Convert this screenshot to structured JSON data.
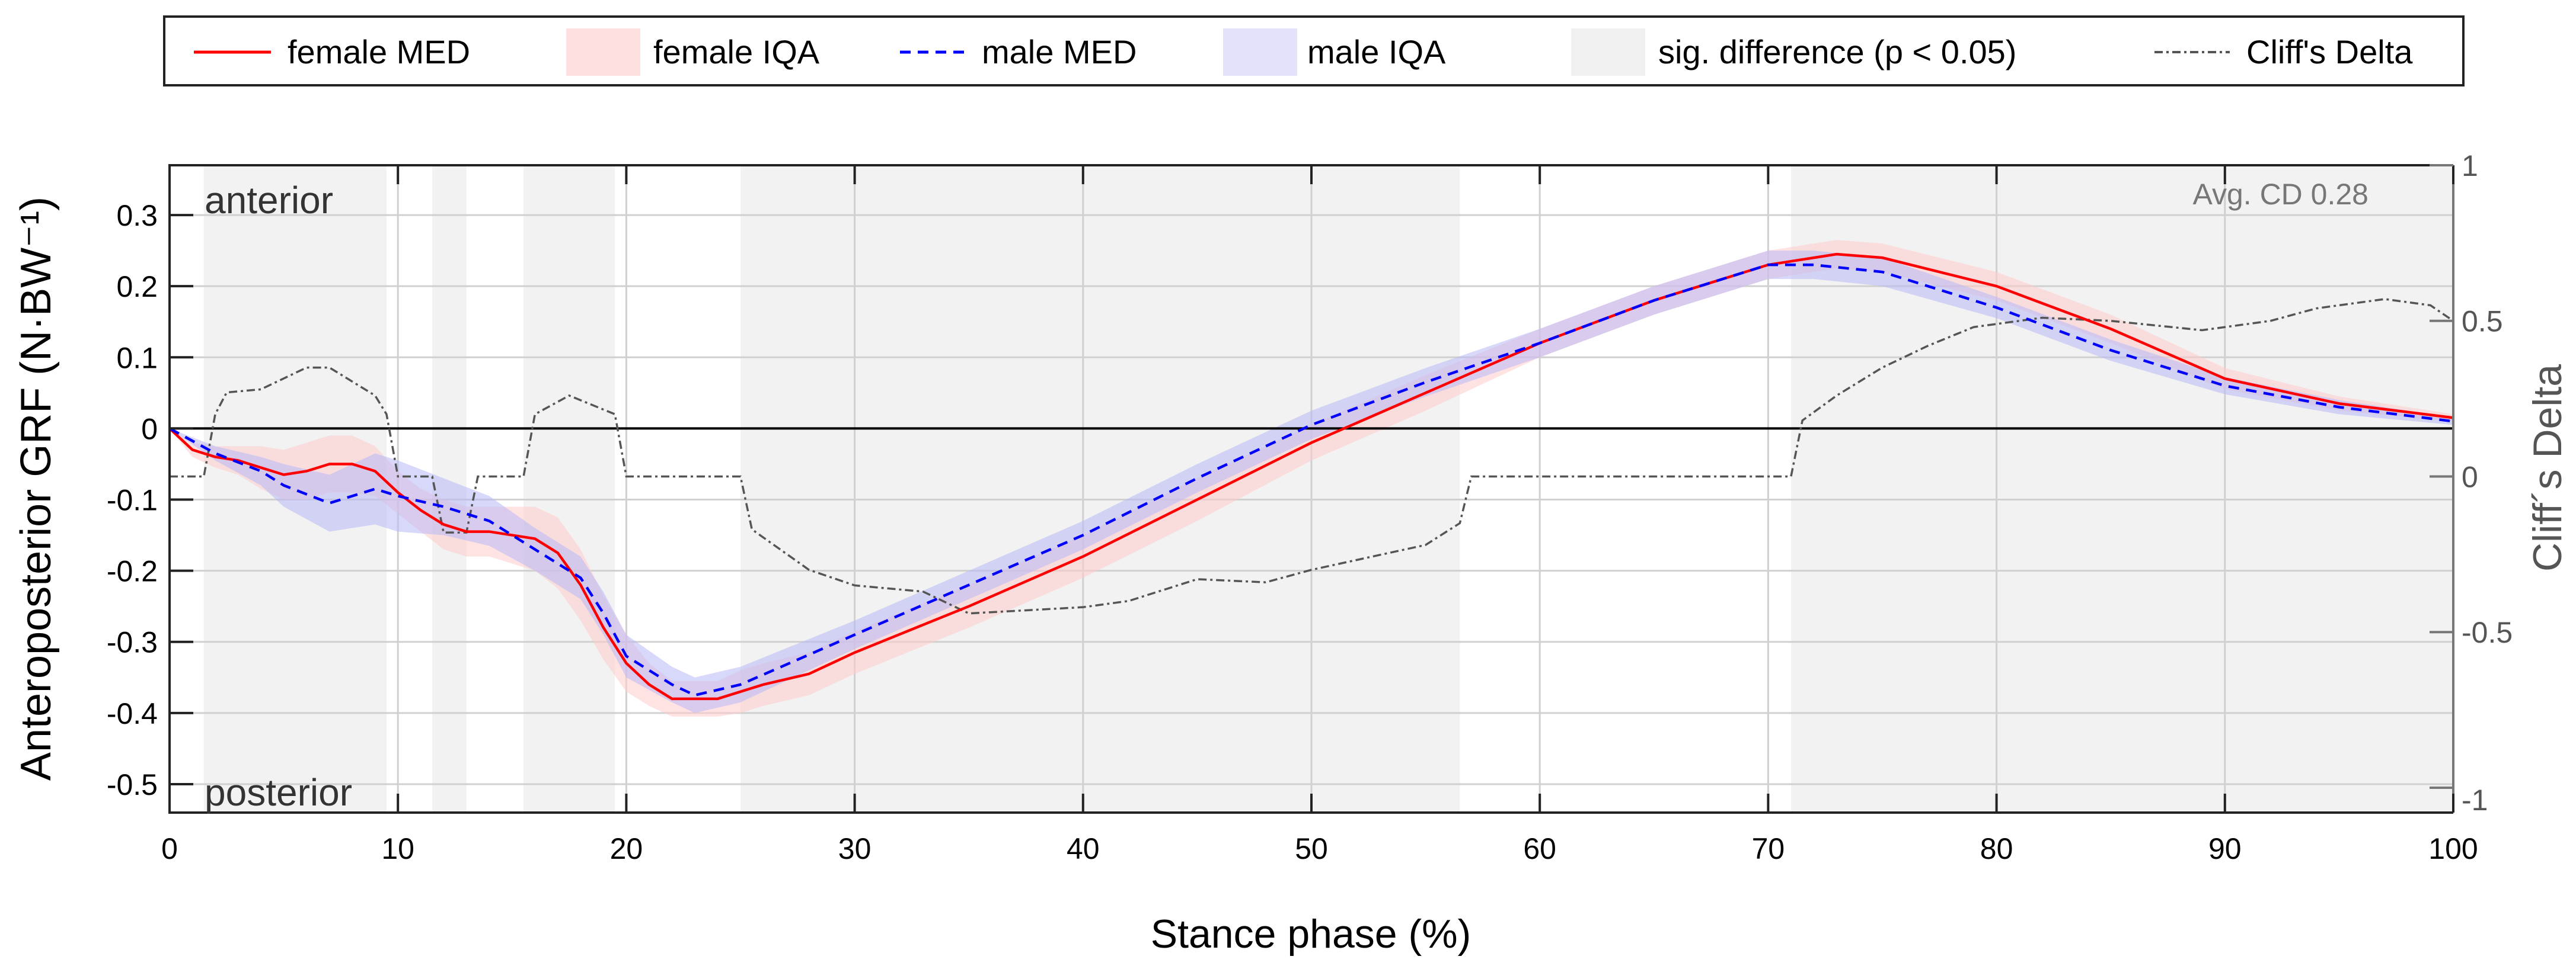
{
  "chart_data": {
    "type": "line",
    "xlabel": "Stance phase (%)",
    "ylabel": "Anteroposterior GRF (N·BW⁻¹)",
    "y2label": "Cliff´s Delta",
    "xlim": [
      0,
      100
    ],
    "ylim": [
      -0.54,
      0.37
    ],
    "y2lim": [
      -1.08,
      1
    ],
    "xticks": [
      0,
      10,
      20,
      30,
      40,
      50,
      60,
      70,
      80,
      90,
      100
    ],
    "xtick_labels": [
      "0",
      "10",
      "20",
      "30",
      "40",
      "50",
      "60",
      "70",
      "80",
      "90",
      "100"
    ],
    "yticks": [
      0.3,
      0.2,
      0.1,
      0,
      -0.1,
      -0.2,
      -0.3,
      -0.4,
      -0.5
    ],
    "ytick_labels": [
      "0.3",
      "0.2",
      "0.1",
      "0",
      "-0.1",
      "-0.2",
      "-0.3",
      "-0.4",
      "-0.5"
    ],
    "y2ticks": [
      1,
      0.5,
      0,
      -0.5,
      -1
    ],
    "y2tick_labels": [
      "1",
      "0.5",
      "0",
      "-0.5",
      "-1"
    ],
    "grid": true,
    "legend_placement": "top, outside",
    "annotations": {
      "top_left": "anterior",
      "bottom_left": "posterior",
      "top_right": "Avg. CD 0.28"
    },
    "legend": [
      "female MED",
      "female IQA",
      "male MED",
      "male IQA",
      "sig. difference (p < 0.05)",
      "Cliff's Delta"
    ],
    "colors": {
      "female": "#ff0000",
      "female_band": "#ffcccc",
      "male": "#0000ff",
      "male_band": "#ccccff",
      "sig": "#f2f2f2",
      "cliff": "#555555"
    },
    "sig_regions": [
      [
        1.5,
        9.5
      ],
      [
        11.5,
        13
      ],
      [
        15.5,
        19.5
      ],
      [
        25,
        56.5
      ],
      [
        71,
        100
      ]
    ],
    "series": [
      {
        "name": "female MED",
        "x": [
          0,
          1,
          2,
          3,
          4,
          5,
          6,
          7,
          8,
          9,
          10,
          11,
          12,
          13,
          14,
          15,
          16,
          17,
          18,
          19,
          20,
          21,
          22,
          23,
          24,
          25,
          26,
          28,
          30,
          35,
          40,
          45,
          50,
          55,
          60,
          65,
          70,
          73,
          75,
          80,
          85,
          90,
          95,
          100
        ],
        "y": [
          0,
          -0.03,
          -0.04,
          -0.045,
          -0.055,
          -0.065,
          -0.06,
          -0.05,
          -0.05,
          -0.06,
          -0.09,
          -0.115,
          -0.135,
          -0.145,
          -0.145,
          -0.15,
          -0.155,
          -0.175,
          -0.22,
          -0.28,
          -0.33,
          -0.36,
          -0.38,
          -0.38,
          -0.38,
          -0.37,
          -0.36,
          -0.345,
          -0.315,
          -0.25,
          -0.18,
          -0.1,
          -0.02,
          0.05,
          0.12,
          0.18,
          0.23,
          0.245,
          0.24,
          0.2,
          0.14,
          0.07,
          0.035,
          0.015
        ],
        "iqa_halfwidth": [
          0,
          0.01,
          0.015,
          0.02,
          0.03,
          0.035,
          0.04,
          0.04,
          0.04,
          0.035,
          0.03,
          0.03,
          0.035,
          0.035,
          0.035,
          0.04,
          0.045,
          0.05,
          0.05,
          0.045,
          0.04,
          0.03,
          0.025,
          0.025,
          0.025,
          0.03,
          0.03,
          0.03,
          0.03,
          0.03,
          0.03,
          0.03,
          0.025,
          0.025,
          0.02,
          0.02,
          0.02,
          0.02,
          0.02,
          0.02,
          0.02,
          0.015,
          0.01,
          0.005
        ]
      },
      {
        "name": "male MED",
        "x": [
          0,
          2,
          4,
          5,
          7,
          9,
          10,
          12,
          14,
          16,
          18,
          19,
          20,
          22,
          23,
          25,
          30,
          35,
          40,
          45,
          50,
          55,
          60,
          65,
          70,
          72,
          75,
          80,
          85,
          90,
          95,
          100
        ],
        "y": [
          0,
          -0.035,
          -0.06,
          -0.08,
          -0.105,
          -0.085,
          -0.095,
          -0.11,
          -0.13,
          -0.17,
          -0.21,
          -0.26,
          -0.32,
          -0.36,
          -0.375,
          -0.36,
          -0.29,
          -0.22,
          -0.15,
          -0.07,
          0.005,
          0.065,
          0.12,
          0.18,
          0.23,
          0.23,
          0.22,
          0.17,
          0.11,
          0.06,
          0.03,
          0.01
        ],
        "iqa_halfwidth": [
          0,
          0.01,
          0.02,
          0.03,
          0.04,
          0.05,
          0.05,
          0.04,
          0.035,
          0.03,
          0.03,
          0.03,
          0.03,
          0.025,
          0.025,
          0.025,
          0.02,
          0.02,
          0.02,
          0.02,
          0.02,
          0.02,
          0.02,
          0.02,
          0.02,
          0.02,
          0.02,
          0.015,
          0.015,
          0.012,
          0.01,
          0.005
        ]
      },
      {
        "name": "Cliff's Delta",
        "axis": "right",
        "x": [
          0,
          1.5,
          2,
          2.5,
          4,
          6,
          7,
          9,
          9.5,
          10,
          11.5,
          12,
          13,
          13.5,
          15.5,
          16,
          17.5,
          19.5,
          20,
          25,
          25.5,
          28,
          30,
          33,
          35,
          40,
          42,
          45,
          48,
          50,
          55,
          56.5,
          57,
          71,
          71.5,
          73,
          75,
          77,
          79,
          82,
          85,
          89,
          92,
          94,
          97,
          99,
          100
        ],
        "y": [
          0,
          0,
          0.2,
          0.27,
          0.28,
          0.35,
          0.35,
          0.26,
          0.2,
          0,
          0,
          -0.18,
          -0.18,
          0,
          0,
          0.2,
          0.26,
          0.2,
          0,
          0,
          -0.17,
          -0.3,
          -0.35,
          -0.37,
          -0.44,
          -0.42,
          -0.4,
          -0.33,
          -0.34,
          -0.3,
          -0.22,
          -0.15,
          0,
          0,
          0.18,
          0.26,
          0.35,
          0.42,
          0.48,
          0.51,
          0.5,
          0.47,
          0.5,
          0.54,
          0.57,
          0.55,
          0.5
        ]
      }
    ]
  }
}
